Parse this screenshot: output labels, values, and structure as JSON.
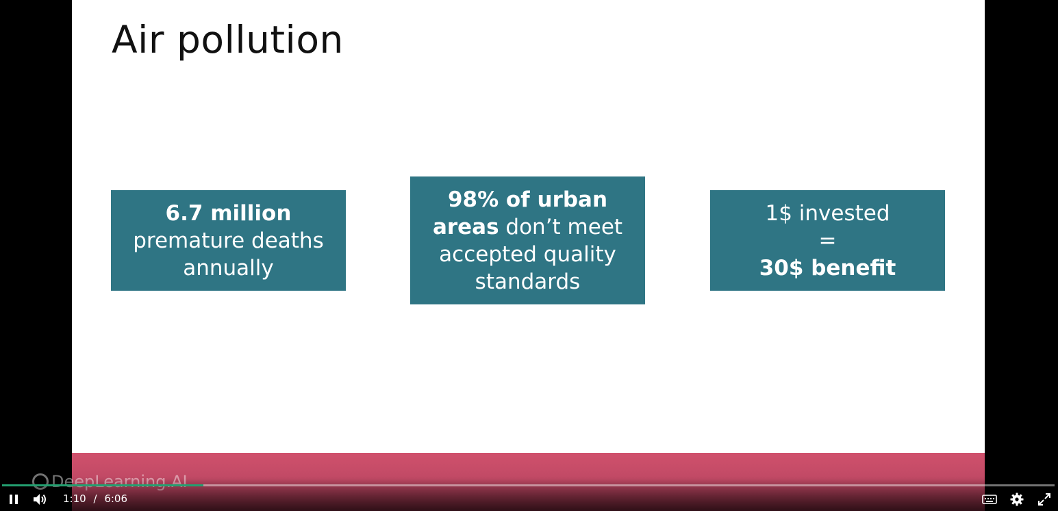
{
  "slide": {
    "title": "Air pollution",
    "boxes": [
      {
        "line1_bold": "6.7 million",
        "line2": "premature deaths",
        "line3": "annually"
      },
      {
        "line1_bold": "98% of urban",
        "line2_bold": "areas",
        "line2_rest": " don’t meet",
        "line3": "accepted quality",
        "line4": "standards"
      },
      {
        "line1": "1$ invested",
        "line2": "=",
        "line3_bold": "30$ benefit"
      }
    ],
    "box_color": "#2f7584",
    "footer_color": "#d0516c",
    "logo_text": "DeepLearning.AI"
  },
  "player": {
    "current_time": "1:10",
    "separator": "/",
    "duration": "6:06",
    "progress_fraction": 0.191,
    "progress_color": "#23a070",
    "icons": {
      "play_pause": "pause-icon",
      "volume": "volume-icon",
      "captions": "captions-icon",
      "settings": "gear-icon",
      "fullscreen": "fullscreen-icon"
    }
  }
}
